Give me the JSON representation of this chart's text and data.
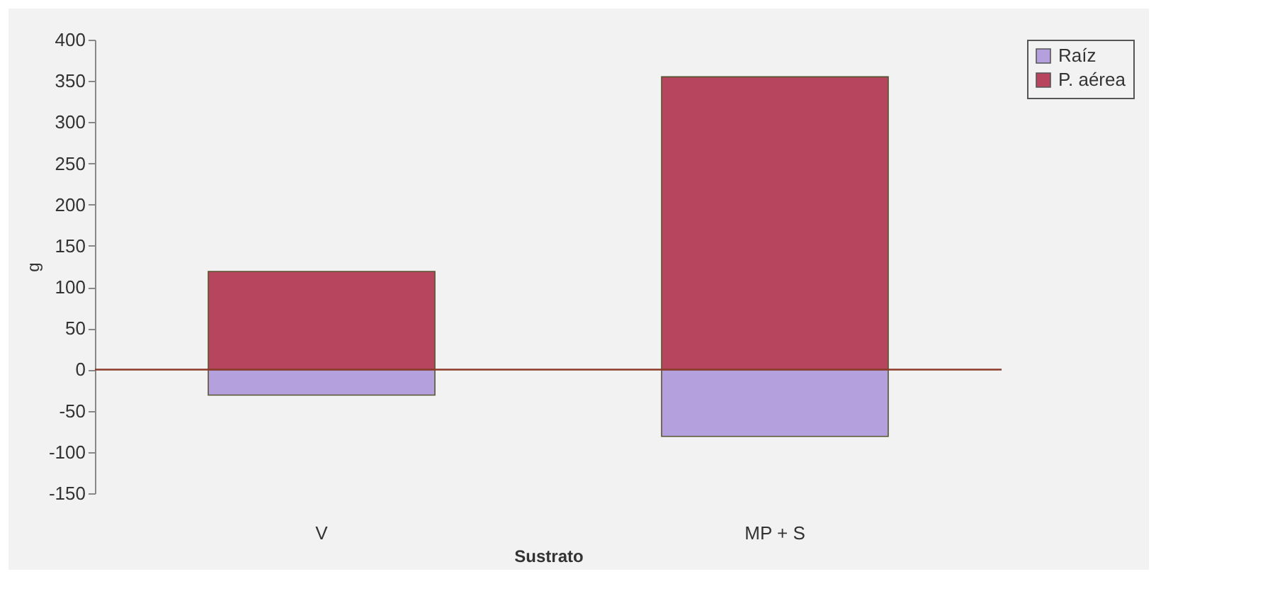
{
  "chart_data": {
    "type": "bar",
    "xlabel": "Sustrato",
    "ylabel": "g",
    "categories": [
      "V",
      "MP + S"
    ],
    "stacked": true,
    "series": [
      {
        "name": "Raíz",
        "color": "#b4a0dc",
        "values": [
          -31,
          -81
        ]
      },
      {
        "name": "P. aérea",
        "color": "#b8455e",
        "values": [
          119,
          355
        ]
      }
    ],
    "ylim": [
      -150,
      400
    ],
    "yticks": [
      -150,
      -100,
      -50,
      0,
      50,
      100,
      150,
      200,
      250,
      300,
      350,
      400
    ],
    "ref_lines": [
      {
        "axis": "y",
        "value": 0,
        "color": "#8b3a2a"
      }
    ],
    "grid": false,
    "legend": "right"
  }
}
